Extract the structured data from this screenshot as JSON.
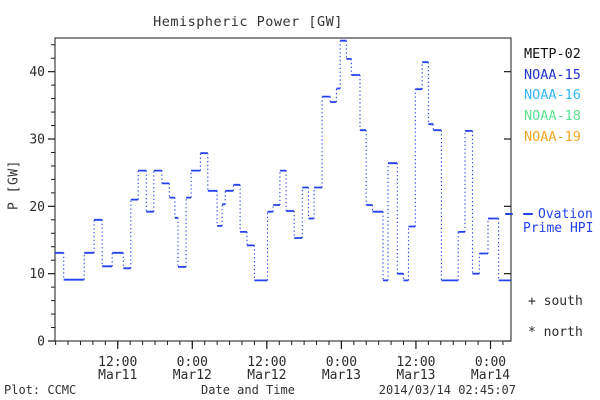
{
  "title": "Hemispheric Power [GW]",
  "y_axis": {
    "label": "P [GW]"
  },
  "legend": {
    "satellites": [
      {
        "label": "METP-02",
        "color": "#111111"
      },
      {
        "label": "NOAA-15",
        "color": "#2133cf"
      },
      {
        "label": "NOAA-16",
        "color": "#35b8f5"
      },
      {
        "label": "NOAA-18",
        "color": "#5fe393"
      },
      {
        "label": "NOAA-19",
        "color": "#f5a623"
      }
    ],
    "ovation": {
      "line1": "Ovation",
      "line2": "Prime HPI",
      "color": "#2441ec"
    },
    "south": "+ south",
    "north": "* north"
  },
  "footer": {
    "plot_source": "Plot: CCMC",
    "xlabel": "Date and Time",
    "timestamp": "2014/03/14 02:45:07"
  },
  "chart_data": {
    "type": "line",
    "style": "step plot: solid horizontal segments (satellite passes) joined by dotted vertical connectors",
    "title": "Hemispheric Power [GW]",
    "xlabel": "Date and Time",
    "ylabel": "P [GW]",
    "unit": "GW",
    "ylim": [
      0,
      45
    ],
    "y_major_ticks": [
      0,
      10,
      20,
      30,
      40
    ],
    "y_minor_step": 2,
    "x_hours_total": 73.4,
    "x_minor_step_hours": 2,
    "x_minor_offset_hours": 0.1,
    "x_major_ticks": [
      {
        "hour": 10.1,
        "time": "12:00",
        "date": "Mar11"
      },
      {
        "hour": 22.1,
        "time": "0:00",
        "date": "Mar12"
      },
      {
        "hour": 34.1,
        "time": "12:00",
        "date": "Mar12"
      },
      {
        "hour": 46.1,
        "time": "0:00",
        "date": "Mar13"
      },
      {
        "hour": 58.1,
        "time": "12:00",
        "date": "Mar13"
      },
      {
        "hour": 70.1,
        "time": "0:00",
        "date": "Mar14"
      }
    ],
    "series_name": "Ovation Prime HPI",
    "series_color": "#2441ec",
    "steps_format": [
      "start_hour",
      "end_hour",
      "power_gw"
    ],
    "steps": [
      [
        0,
        1.4,
        13.1
      ],
      [
        1.4,
        4.7,
        9.1
      ],
      [
        4.7,
        6.3,
        13.1
      ],
      [
        6.3,
        7.6,
        18
      ],
      [
        7.6,
        9.2,
        11.1
      ],
      [
        9.2,
        11,
        13.1
      ],
      [
        11,
        12.2,
        10.8
      ],
      [
        12.2,
        13.4,
        21
      ],
      [
        13.4,
        14.7,
        25.3
      ],
      [
        14.7,
        15.9,
        19.2
      ],
      [
        15.9,
        17.2,
        25.3
      ],
      [
        17.2,
        18.4,
        23.4
      ],
      [
        18.4,
        19.3,
        21.3
      ],
      [
        19.3,
        19.8,
        18.3
      ],
      [
        19.8,
        21.1,
        11
      ],
      [
        21.1,
        21.9,
        21.3
      ],
      [
        21.9,
        23.4,
        25.3
      ],
      [
        23.4,
        24.6,
        27.9
      ],
      [
        24.6,
        26.1,
        22.3
      ],
      [
        26.1,
        26.9,
        17.1
      ],
      [
        26.9,
        27.4,
        20.3
      ],
      [
        27.4,
        28.7,
        22.3
      ],
      [
        28.7,
        29.8,
        23.2
      ],
      [
        29.8,
        30.9,
        16.2
      ],
      [
        30.9,
        32.1,
        14.2
      ],
      [
        32.1,
        34.2,
        9
      ],
      [
        34.2,
        35.1,
        19.2
      ],
      [
        35.1,
        36.2,
        20.2
      ],
      [
        36.2,
        37.2,
        25.3
      ],
      [
        37.2,
        38.5,
        19.3
      ],
      [
        38.5,
        39.8,
        15.3
      ],
      [
        39.8,
        40.8,
        22.8
      ],
      [
        40.8,
        41.7,
        18.2
      ],
      [
        41.7,
        43,
        22.8
      ],
      [
        43,
        44.3,
        36.3
      ],
      [
        44.3,
        45.3,
        35.5
      ],
      [
        45.3,
        45.9,
        37.5
      ],
      [
        45.9,
        46.9,
        44.6
      ],
      [
        46.9,
        47.7,
        41.9
      ],
      [
        47.7,
        49.1,
        39.5
      ],
      [
        49.1,
        50.1,
        31.3
      ],
      [
        50.1,
        51.1,
        20.2
      ],
      [
        51.1,
        52.8,
        19.2
      ],
      [
        52.8,
        53.6,
        9
      ],
      [
        53.6,
        55.1,
        26.4
      ],
      [
        55.1,
        56.1,
        10
      ],
      [
        56.1,
        56.9,
        9
      ],
      [
        56.9,
        58,
        17
      ],
      [
        58,
        59.1,
        37.4
      ],
      [
        59.1,
        60.1,
        41.4
      ],
      [
        60.1,
        60.9,
        32.2
      ],
      [
        60.9,
        62.2,
        31.3
      ],
      [
        62.2,
        64.9,
        9
      ],
      [
        64.9,
        66,
        16.2
      ],
      [
        66,
        67.2,
        31.2
      ],
      [
        67.2,
        68.3,
        10
      ],
      [
        68.3,
        69.7,
        13
      ],
      [
        69.7,
        71.4,
        18.2
      ],
      [
        71.4,
        73.4,
        9
      ]
    ]
  }
}
